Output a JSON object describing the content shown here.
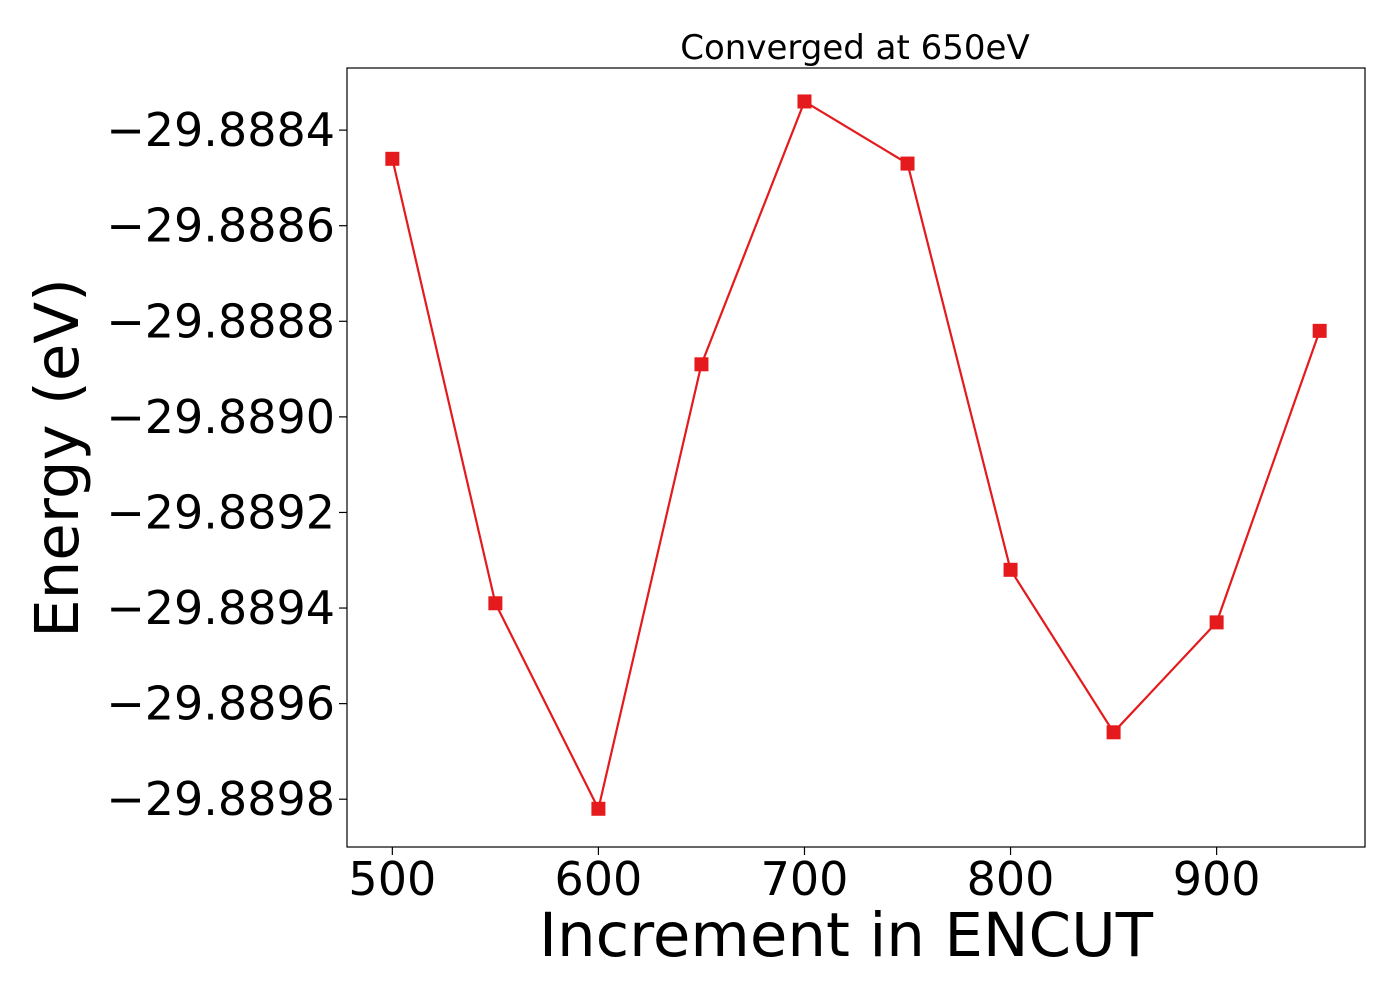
{
  "chart_data": {
    "type": "line",
    "title": "Converged at 650eV",
    "xlabel": "Increment in ENCUT",
    "ylabel": "Energy (eV)",
    "x": [
      500,
      550,
      600,
      650,
      700,
      750,
      800,
      850,
      900,
      950
    ],
    "series": [
      {
        "values": [
          -29.88846,
          -29.88939,
          -29.88982,
          -29.88889,
          -29.88834,
          -29.88847,
          -29.88932,
          -29.88966,
          -29.88943,
          -29.88882
        ],
        "color": "#e41a1c",
        "marker": "square"
      }
    ],
    "xlim": [
      478,
      972
    ],
    "ylim": [
      -29.8899,
      -29.88827
    ],
    "xticks": [
      500,
      600,
      700,
      800,
      900
    ],
    "xtick_labels": [
      "500",
      "600",
      "700",
      "800",
      "900"
    ],
    "yticks": [
      -29.8898,
      -29.8896,
      -29.8894,
      -29.8892,
      -29.889,
      -29.8888,
      -29.8886,
      -29.8884
    ],
    "ytick_labels": [
      "−29.8898",
      "−29.8896",
      "−29.8894",
      "−29.8892",
      "−29.8890",
      "−29.8888",
      "−29.8886",
      "−29.8884"
    ],
    "grid": false,
    "legend": "none"
  }
}
